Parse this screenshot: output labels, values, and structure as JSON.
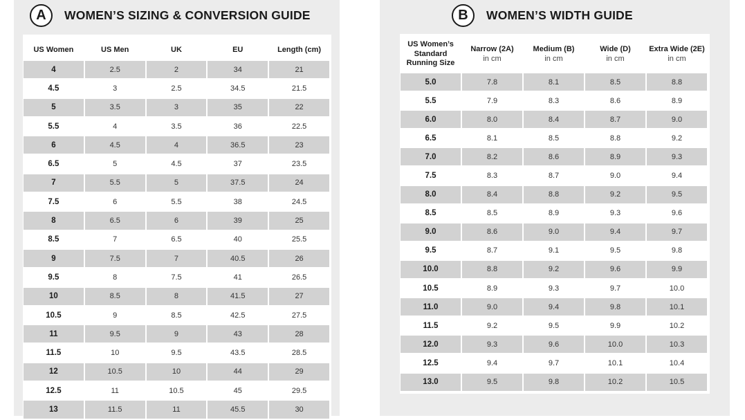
{
  "sizing_guide": {
    "badge": "A",
    "title": "WOMEN’S SIZING & CONVERSION GUIDE",
    "headers": [
      "US Women",
      "US Men",
      "UK",
      "EU",
      "Length (cm)"
    ],
    "rows": [
      [
        "4",
        "2.5",
        "2",
        "34",
        "21"
      ],
      [
        "4.5",
        "3",
        "2.5",
        "34.5",
        "21.5"
      ],
      [
        "5",
        "3.5",
        "3",
        "35",
        "22"
      ],
      [
        "5.5",
        "4",
        "3.5",
        "36",
        "22.5"
      ],
      [
        "6",
        "4.5",
        "4",
        "36.5",
        "23"
      ],
      [
        "6.5",
        "5",
        "4.5",
        "37",
        "23.5"
      ],
      [
        "7",
        "5.5",
        "5",
        "37.5",
        "24"
      ],
      [
        "7.5",
        "6",
        "5.5",
        "38",
        "24.5"
      ],
      [
        "8",
        "6.5",
        "6",
        "39",
        "25"
      ],
      [
        "8.5",
        "7",
        "6.5",
        "40",
        "25.5"
      ],
      [
        "9",
        "7.5",
        "7",
        "40.5",
        "26"
      ],
      [
        "9.5",
        "8",
        "7.5",
        "41",
        "26.5"
      ],
      [
        "10",
        "8.5",
        "8",
        "41.5",
        "27"
      ],
      [
        "10.5",
        "9",
        "8.5",
        "42.5",
        "27.5"
      ],
      [
        "11",
        "9.5",
        "9",
        "43",
        "28"
      ],
      [
        "11.5",
        "10",
        "9.5",
        "43.5",
        "28.5"
      ],
      [
        "12",
        "10.5",
        "10",
        "44",
        "29"
      ],
      [
        "12.5",
        "11",
        "10.5",
        "45",
        "29.5"
      ],
      [
        "13",
        "11.5",
        "11",
        "45.5",
        "30"
      ]
    ]
  },
  "width_guide": {
    "badge": "B",
    "title": "WOMEN’S WIDTH GUIDE",
    "headers": [
      {
        "label": "US Women’s\nStandard\nRunning Size",
        "sub": ""
      },
      {
        "label": "Narrow (2A)",
        "sub": "in cm"
      },
      {
        "label": "Medium (B)",
        "sub": "in cm"
      },
      {
        "label": "Wide (D)",
        "sub": "in cm"
      },
      {
        "label": "Extra Wide (2E)",
        "sub": "in cm"
      }
    ],
    "rows": [
      [
        "5.0",
        "7.8",
        "8.1",
        "8.5",
        "8.8"
      ],
      [
        "5.5",
        "7.9",
        "8.3",
        "8.6",
        "8.9"
      ],
      [
        "6.0",
        "8.0",
        "8.4",
        "8.7",
        "9.0"
      ],
      [
        "6.5",
        "8.1",
        "8.5",
        "8.8",
        "9.2"
      ],
      [
        "7.0",
        "8.2",
        "8.6",
        "8.9",
        "9.3"
      ],
      [
        "7.5",
        "8.3",
        "8.7",
        "9.0",
        "9.4"
      ],
      [
        "8.0",
        "8.4",
        "8.8",
        "9.2",
        "9.5"
      ],
      [
        "8.5",
        "8.5",
        "8.9",
        "9.3",
        "9.6"
      ],
      [
        "9.0",
        "8.6",
        "9.0",
        "9.4",
        "9.7"
      ],
      [
        "9.5",
        "8.7",
        "9.1",
        "9.5",
        "9.8"
      ],
      [
        "10.0",
        "8.8",
        "9.2",
        "9.6",
        "9.9"
      ],
      [
        "10.5",
        "8.9",
        "9.3",
        "9.7",
        "10.0"
      ],
      [
        "11.0",
        "9.0",
        "9.4",
        "9.8",
        "10.1"
      ],
      [
        "11.5",
        "9.2",
        "9.5",
        "9.9",
        "10.2"
      ],
      [
        "12.0",
        "9.3",
        "9.6",
        "10.0",
        "10.3"
      ],
      [
        "12.5",
        "9.4",
        "9.7",
        "10.1",
        "10.4"
      ],
      [
        "13.0",
        "9.5",
        "9.8",
        "10.2",
        "10.5"
      ]
    ]
  }
}
